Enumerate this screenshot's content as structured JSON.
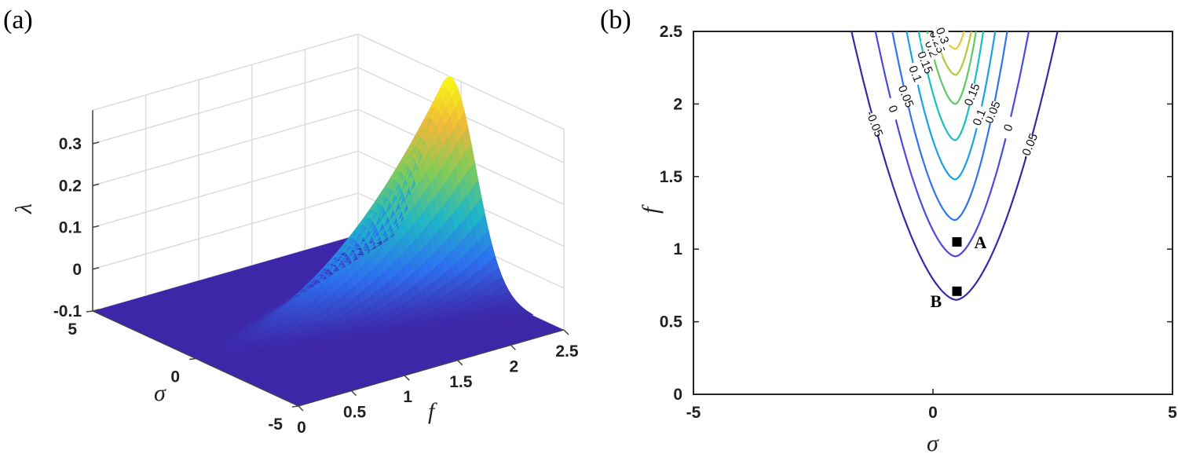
{
  "chart_data": [
    {
      "panel": "(a)",
      "type": "surface3d",
      "zlabel": "λ",
      "xlabel": "σ",
      "ylabel": "f",
      "x_range": [
        -5,
        5
      ],
      "y_range": [
        0,
        2.5
      ],
      "z_range": [
        -0.1,
        0.35
      ],
      "x_ticks": [
        "5",
        "0",
        "-5"
      ],
      "y_ticks": [
        "0",
        "0.5",
        "1",
        "1.5",
        "2",
        "2.5"
      ],
      "z_ticks": [
        "-0.1",
        "0",
        "0.1",
        "0.2",
        "0.3"
      ],
      "peak": {
        "x": 0.5,
        "y": 2.5,
        "z": 0.38
      },
      "floor": -0.1,
      "colormap": [
        "#3e26a8",
        "#2d70f0",
        "#1fb6c7",
        "#7fcb5a",
        "#f0b83a",
        "#f9fb14"
      ],
      "grid": true
    },
    {
      "panel": "(b)",
      "type": "contour",
      "xlabel": "σ",
      "ylabel": "f",
      "xlim": [
        -5,
        5
      ],
      "ylim": [
        0,
        2.5
      ],
      "x_ticks": [
        "-5",
        "0",
        "5"
      ],
      "y_ticks": [
        "0",
        "0.5",
        "1",
        "1.5",
        "2",
        "2.5"
      ],
      "levels": [
        {
          "value": -0.05,
          "label": "-0.05",
          "x_left_top": -1.7,
          "x_right_top": 2.6,
          "y_min": 0.65,
          "color": "#3e26a8"
        },
        {
          "value": 0,
          "label": "0",
          "x_left_top": -1.2,
          "x_right_top": 2.0,
          "y_min": 0.95,
          "color": "#4a4ade"
        },
        {
          "value": 0.05,
          "label": "0.05",
          "x_left_top": -0.85,
          "x_right_top": 1.55,
          "y_min": 1.2,
          "color": "#2f73f2"
        },
        {
          "value": 0.1,
          "label": "0.1",
          "x_left_top": -0.55,
          "x_right_top": 1.3,
          "y_min": 1.48,
          "color": "#1aa0e6"
        },
        {
          "value": 0.15,
          "label": "0.15",
          "x_left_top": -0.3,
          "x_right_top": 1.05,
          "y_min": 1.75,
          "color": "#17bfc0"
        },
        {
          "value": 0.2,
          "label": "0.2",
          "x_left_top": -0.12,
          "x_right_top": 0.9,
          "y_min": 2.0,
          "color": "#5ec962"
        },
        {
          "value": 0.25,
          "label": "0.25",
          "x_left_top": 0.02,
          "x_right_top": 0.8,
          "y_min": 2.2,
          "color": "#b4c933"
        },
        {
          "value": 0.3,
          "label": "0.3",
          "x_left_top": 0.15,
          "x_right_top": 0.65,
          "y_min": 2.38,
          "color": "#f0c62e"
        }
      ],
      "points": [
        {
          "name": "A",
          "x": 0.5,
          "y": 1.05
        },
        {
          "name": "B",
          "x": 0.5,
          "y": 0.71
        }
      ]
    }
  ]
}
